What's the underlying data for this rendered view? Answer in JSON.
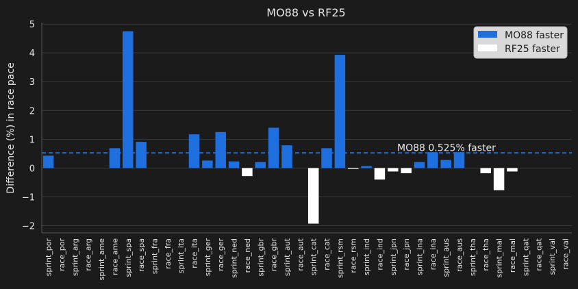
{
  "chart_data": {
    "type": "bar",
    "title": "MO88 vs RF25",
    "ylabel": "Difference (%) in race pace",
    "xlabel": "",
    "ylim": [
      -2.25,
      5.05
    ],
    "yticks": [
      -2,
      -1,
      0,
      1,
      2,
      3,
      4,
      5
    ],
    "ytick_labels": [
      "−2",
      "−1",
      "0",
      "1",
      "2",
      "3",
      "4",
      "5"
    ],
    "grid": true,
    "legend_position": "top-right",
    "legend": [
      {
        "name": "MO88 faster",
        "color": "#1f6fde"
      },
      {
        "name": "RF25 faster",
        "color": "#ffffff"
      }
    ],
    "reference_line": {
      "value": 0.525,
      "label": "MO88 0.525% faster",
      "color": "#1f6fde",
      "style": "dashed"
    },
    "categories": [
      "sprint_por",
      "race_por",
      "sprint_arg",
      "race_arg",
      "sprint_ame",
      "race_ame",
      "sprint_spa",
      "race_spa",
      "sprint_fra",
      "race_fra",
      "sprint_ita",
      "race_ita",
      "sprint_ger",
      "race_ger",
      "sprint_ned",
      "race_ned",
      "sprint_gbr",
      "race_gbr",
      "sprint_aut",
      "race_aut",
      "sprint_cat",
      "race_cat",
      "sprint_rsm",
      "race_rsm",
      "sprint_ind",
      "race_ind",
      "sprint_jpn",
      "race_jpn",
      "sprint_ina",
      "race_ina",
      "sprint_aus",
      "race_aus",
      "sprint_tha",
      "race_tha",
      "sprint_mal",
      "race_mal",
      "sprint_qat",
      "race_qat",
      "sprint_val",
      "race_val"
    ],
    "values": [
      0.43,
      null,
      null,
      null,
      null,
      0.69,
      4.75,
      0.91,
      null,
      null,
      null,
      1.17,
      0.26,
      1.25,
      0.23,
      -0.28,
      0.21,
      1.4,
      0.79,
      null,
      -1.93,
      0.69,
      3.93,
      -0.03,
      0.07,
      -0.4,
      -0.12,
      -0.18,
      0.21,
      0.55,
      0.28,
      0.55,
      null,
      -0.18,
      -0.77,
      -0.12,
      null,
      null,
      null,
      null
    ],
    "colors": {
      "positive": "#1f6fde",
      "negative": "#ffffff"
    }
  }
}
